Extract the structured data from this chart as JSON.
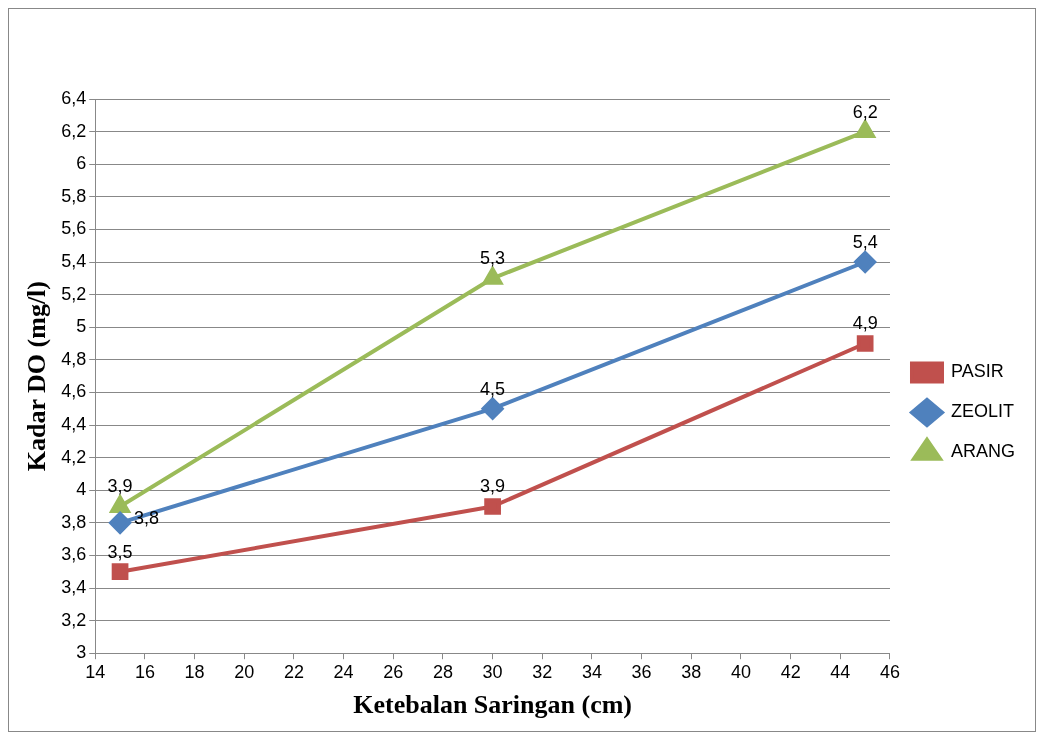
{
  "chart_data": {
    "type": "line",
    "xlabel": "Ketebalan Saringan (cm)",
    "ylabel": "Kadar DO (mg/l)",
    "x": [
      15,
      30,
      45
    ],
    "series": [
      {
        "name": "PASIR",
        "color": "#c0504d",
        "marker": "square",
        "values": [
          3.5,
          3.9,
          4.9
        ],
        "value_labels": [
          "3,5",
          "3,9",
          "4,9"
        ]
      },
      {
        "name": "ZEOLIT",
        "color": "#4f81bd",
        "marker": "diamond",
        "values": [
          3.8,
          4.5,
          5.4
        ],
        "value_labels": [
          "3,8",
          "4,5",
          "5,4"
        ]
      },
      {
        "name": "ARANG",
        "color": "#9bbb59",
        "marker": "triangle",
        "values": [
          3.9,
          5.3,
          6.2
        ],
        "value_labels": [
          "3,9",
          "5,3",
          "6,2"
        ]
      }
    ],
    "xlim": [
      14,
      46
    ],
    "xticks": [
      14,
      16,
      18,
      20,
      22,
      24,
      26,
      28,
      30,
      32,
      34,
      36,
      38,
      40,
      42,
      44,
      46
    ],
    "ylim": [
      3,
      6.4
    ],
    "yticks": [
      3,
      {
        "value": 3.2,
        "label": "3,2"
      },
      {
        "value": 3.4,
        "label": "3,4"
      },
      {
        "value": 3.6,
        "label": "3,6"
      },
      {
        "value": 3.8,
        "label": "3,8"
      },
      4,
      {
        "value": 4.2,
        "label": "4,2"
      },
      {
        "value": 4.4,
        "label": "4,4"
      },
      {
        "value": 4.6,
        "label": "4,6"
      },
      {
        "value": 4.8,
        "label": "4,8"
      },
      5,
      {
        "value": 5.2,
        "label": "5,2"
      },
      {
        "value": 5.4,
        "label": "5,4"
      },
      {
        "value": 5.6,
        "label": "5,6"
      },
      {
        "value": 5.8,
        "label": "5,8"
      },
      6,
      {
        "value": 6.2,
        "label": "6,2"
      },
      {
        "value": 6.4,
        "label": "6,4"
      }
    ],
    "grid": "y",
    "legend": "right",
    "line_style": "solid"
  }
}
